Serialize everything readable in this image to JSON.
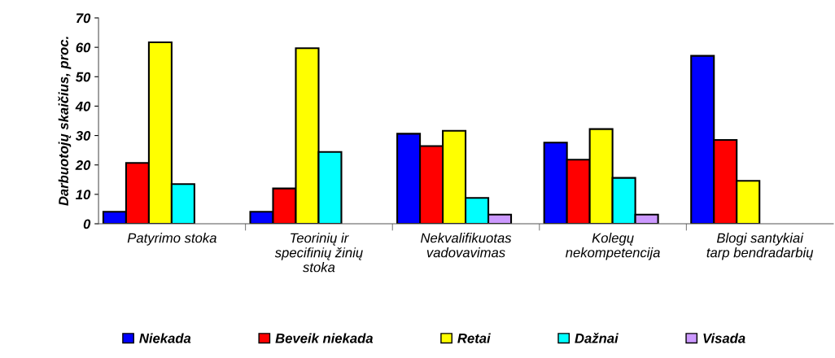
{
  "chart_data": {
    "type": "bar",
    "ylabel": "Darbuotojų skaičius, proc.",
    "categories": [
      "Patyrimo stoka",
      "Teorinių ir\nspecifinių žinių\nstoka",
      "Nekvalifikuotas\nvadovavimas",
      "Kolegų\nnekompetencija",
      "Blogi santykiai\ntarp bendradarbių"
    ],
    "series": [
      {
        "name": "Niekada",
        "color": "#0000ff",
        "values": [
          4.1,
          4.1,
          30.6,
          27.6,
          57.1
        ]
      },
      {
        "name": "Beveik niekada",
        "color": "#ff0000",
        "values": [
          20.7,
          12.0,
          26.4,
          21.8,
          28.5
        ]
      },
      {
        "name": "Retai",
        "color": "#ffff00",
        "values": [
          61.7,
          59.7,
          31.6,
          32.2,
          14.6
        ]
      },
      {
        "name": "Dažnai",
        "color": "#00ffff",
        "values": [
          13.5,
          24.4,
          8.8,
          15.6,
          null
        ]
      },
      {
        "name": "Visada",
        "color": "#cc99ff",
        "values": [
          null,
          null,
          3.1,
          3.1,
          null
        ]
      }
    ],
    "ylim": [
      0,
      70
    ],
    "yticks": [
      0,
      10,
      20,
      30,
      40,
      50,
      60,
      70
    ],
    "grid": false,
    "legend": "bottom"
  }
}
